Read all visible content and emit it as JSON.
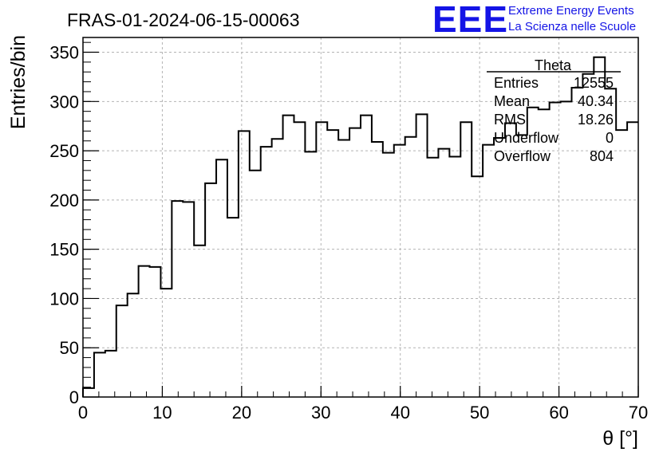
{
  "chart_data": {
    "type": "histogram",
    "title": "FRAS-01-2024-06-15-00063",
    "xlabel": "θ [°]",
    "ylabel": "Entries/bin",
    "xlim": [
      0,
      70
    ],
    "ylim": [
      0,
      365
    ],
    "x_ticks": [
      0,
      10,
      20,
      30,
      40,
      50,
      60,
      70
    ],
    "y_ticks": [
      0,
      50,
      100,
      150,
      200,
      250,
      300,
      350
    ],
    "grid": true,
    "bin_width": 1.4,
    "bin_edges_start": 0,
    "values": [
      9,
      45,
      47,
      93,
      105,
      133,
      132,
      110,
      199,
      198,
      154,
      217,
      241,
      182,
      270,
      230,
      254,
      262,
      286,
      279,
      249,
      279,
      271,
      261,
      273,
      286,
      259,
      248,
      256,
      264,
      287,
      243,
      252,
      244,
      279,
      224,
      256,
      263,
      278,
      266,
      294,
      292,
      299,
      300,
      314,
      328,
      345,
      313,
      271,
      279
    ]
  },
  "stats_box": {
    "title": "Theta",
    "rows": [
      {
        "label": "Entries",
        "value": "12555"
      },
      {
        "label": "Mean",
        "value": "40.34"
      },
      {
        "label": "RMS",
        "value": "18.26"
      },
      {
        "label": "Underflow",
        "value": "0"
      },
      {
        "label": "Overflow",
        "value": "804"
      }
    ]
  },
  "logo": {
    "big": "EEE",
    "line1": "Extreme Energy Events",
    "line2": "La Scienza nelle Scuole"
  },
  "colors": {
    "logo": "#1414e6",
    "line": "#000000",
    "grid": "#b4b4b4"
  }
}
